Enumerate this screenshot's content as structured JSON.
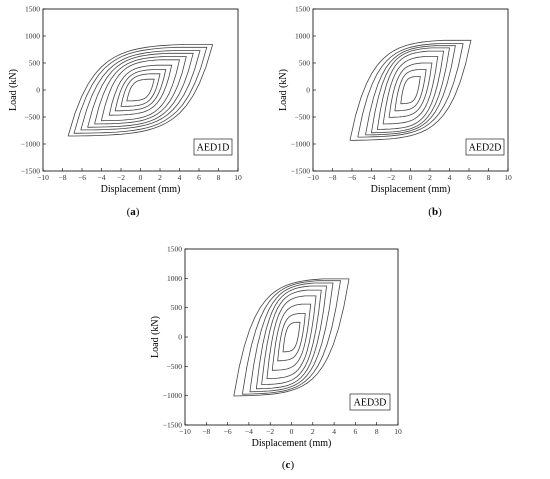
{
  "chart_data": [
    {
      "type": "line",
      "panel_label": "(a)",
      "legend": "AED1D",
      "xlabel": "Displacement (mm)",
      "ylabel": "Load (kN)",
      "xlim": [
        -10,
        10
      ],
      "ylim": [
        -1500,
        1500
      ],
      "xticks": [
        -10,
        -8,
        -6,
        -4,
        -2,
        0,
        2,
        4,
        6,
        8,
        10
      ],
      "yticks": [
        -1500,
        -1000,
        -500,
        0,
        500,
        1000,
        1500
      ],
      "series": [
        {
          "values": [
            [
              1.4,
              200
            ],
            [
              -1.4,
              -200
            ]
          ]
        },
        {
          "values": [
            [
              2.0,
              300
            ],
            [
              -2.0,
              -300
            ]
          ]
        },
        {
          "values": [
            [
              2.6,
              380
            ],
            [
              -2.6,
              -380
            ]
          ]
        },
        {
          "values": [
            [
              3.2,
              460
            ],
            [
              -3.2,
              -460
            ]
          ]
        },
        {
          "values": [
            [
              4.0,
              560
            ],
            [
              -4.0,
              -560
            ]
          ]
        },
        {
          "values": [
            [
              4.7,
              620
            ],
            [
              -4.7,
              -620
            ]
          ]
        },
        {
          "values": [
            [
              5.4,
              680
            ],
            [
              -5.4,
              -680
            ]
          ]
        },
        {
          "values": [
            [
              6.1,
              730
            ],
            [
              -6.1,
              -730
            ]
          ]
        },
        {
          "values": [
            [
              6.8,
              790
            ],
            [
              -6.8,
              -790
            ]
          ]
        },
        {
          "values": [
            [
              7.4,
              840
            ],
            [
              -7.4,
              -840
            ]
          ]
        }
      ]
    },
    {
      "type": "line",
      "panel_label": "(b)",
      "legend": "AED2D",
      "xlabel": "Displacement (mm)",
      "ylabel": "Load (kN)",
      "xlim": [
        -10,
        10
      ],
      "ylim": [
        -1500,
        1500
      ],
      "xticks": [
        -10,
        -8,
        -6,
        -4,
        -2,
        0,
        2,
        4,
        6,
        8,
        10
      ],
      "yticks": [
        -1500,
        -1000,
        -500,
        0,
        500,
        1000,
        1500
      ],
      "series": [
        {
          "values": [
            [
              1.0,
              250
            ],
            [
              -1.0,
              -250
            ]
          ]
        },
        {
          "values": [
            [
              1.6,
              380
            ],
            [
              -1.6,
              -380
            ]
          ]
        },
        {
          "values": [
            [
              2.2,
              500
            ],
            [
              -2.2,
              -500
            ]
          ]
        },
        {
          "values": [
            [
              2.8,
              620
            ],
            [
              -2.8,
              -620
            ]
          ]
        },
        {
          "values": [
            [
              3.4,
              720
            ],
            [
              -3.4,
              -720
            ]
          ]
        },
        {
          "values": [
            [
              4.0,
              780
            ],
            [
              -4.0,
              -780
            ]
          ]
        },
        {
          "values": [
            [
              4.6,
              820
            ],
            [
              -4.6,
              -820
            ]
          ]
        },
        {
          "values": [
            [
              5.4,
              860
            ],
            [
              -5.4,
              -860
            ]
          ]
        },
        {
          "values": [
            [
              6.2,
              920
            ],
            [
              -6.2,
              -920
            ]
          ]
        }
      ]
    },
    {
      "type": "line",
      "panel_label": "(c)",
      "legend": "AED3D",
      "xlabel": "Displacement (mm)",
      "ylabel": "Load (kN)",
      "xlim": [
        -10,
        10
      ],
      "ylim": [
        -1500,
        1500
      ],
      "xticks": [
        -10,
        -8,
        -6,
        -4,
        -2,
        0,
        2,
        4,
        6,
        8,
        10
      ],
      "yticks": [
        -1500,
        -1000,
        -500,
        0,
        500,
        1000,
        1500
      ],
      "series": [
        {
          "values": [
            [
              0.8,
              250
            ],
            [
              -0.8,
              -250
            ]
          ]
        },
        {
          "values": [
            [
              1.3,
              400
            ],
            [
              -1.3,
              -400
            ]
          ]
        },
        {
          "values": [
            [
              1.8,
              560
            ],
            [
              -1.8,
              -560
            ]
          ]
        },
        {
          "values": [
            [
              2.3,
              700
            ],
            [
              -2.3,
              -700
            ]
          ]
        },
        {
          "values": [
            [
              2.8,
              800
            ],
            [
              -2.8,
              -800
            ]
          ]
        },
        {
          "values": [
            [
              3.3,
              870
            ],
            [
              -3.3,
              -870
            ]
          ]
        },
        {
          "values": [
            [
              3.9,
              920
            ],
            [
              -3.9,
              -920
            ]
          ]
        },
        {
          "values": [
            [
              4.6,
              960
            ],
            [
              -4.6,
              -960
            ]
          ]
        },
        {
          "values": [
            [
              5.4,
              990
            ],
            [
              -5.4,
              -990
            ]
          ]
        }
      ]
    }
  ]
}
